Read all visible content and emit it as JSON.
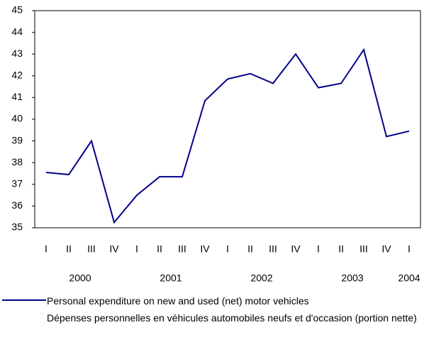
{
  "chart_data": {
    "type": "line",
    "categories": [
      "I",
      "II",
      "III",
      "IV",
      "I",
      "II",
      "III",
      "IV",
      "I",
      "II",
      "III",
      "IV",
      "I",
      "II",
      "III",
      "IV",
      "I"
    ],
    "years": [
      "2000",
      "2001",
      "2002",
      "2003",
      "2004"
    ],
    "series": [
      {
        "name": "Personal expenditure on new and used (net) motor vehicles",
        "name_fr": "Dépenses personnelles en véhicules automobiles neufs et d'occasion (portion nette)",
        "color": "#00008b",
        "values": [
          37.55,
          37.45,
          39.0,
          35.25,
          36.5,
          37.35,
          37.35,
          40.85,
          41.85,
          42.1,
          41.65,
          43.0,
          41.45,
          41.65,
          43.2,
          39.2,
          39.45
        ]
      }
    ],
    "ylim": [
      35,
      45
    ],
    "yticks": [
      35,
      36,
      37,
      38,
      39,
      40,
      41,
      42,
      43,
      44,
      45
    ],
    "grid": false
  }
}
